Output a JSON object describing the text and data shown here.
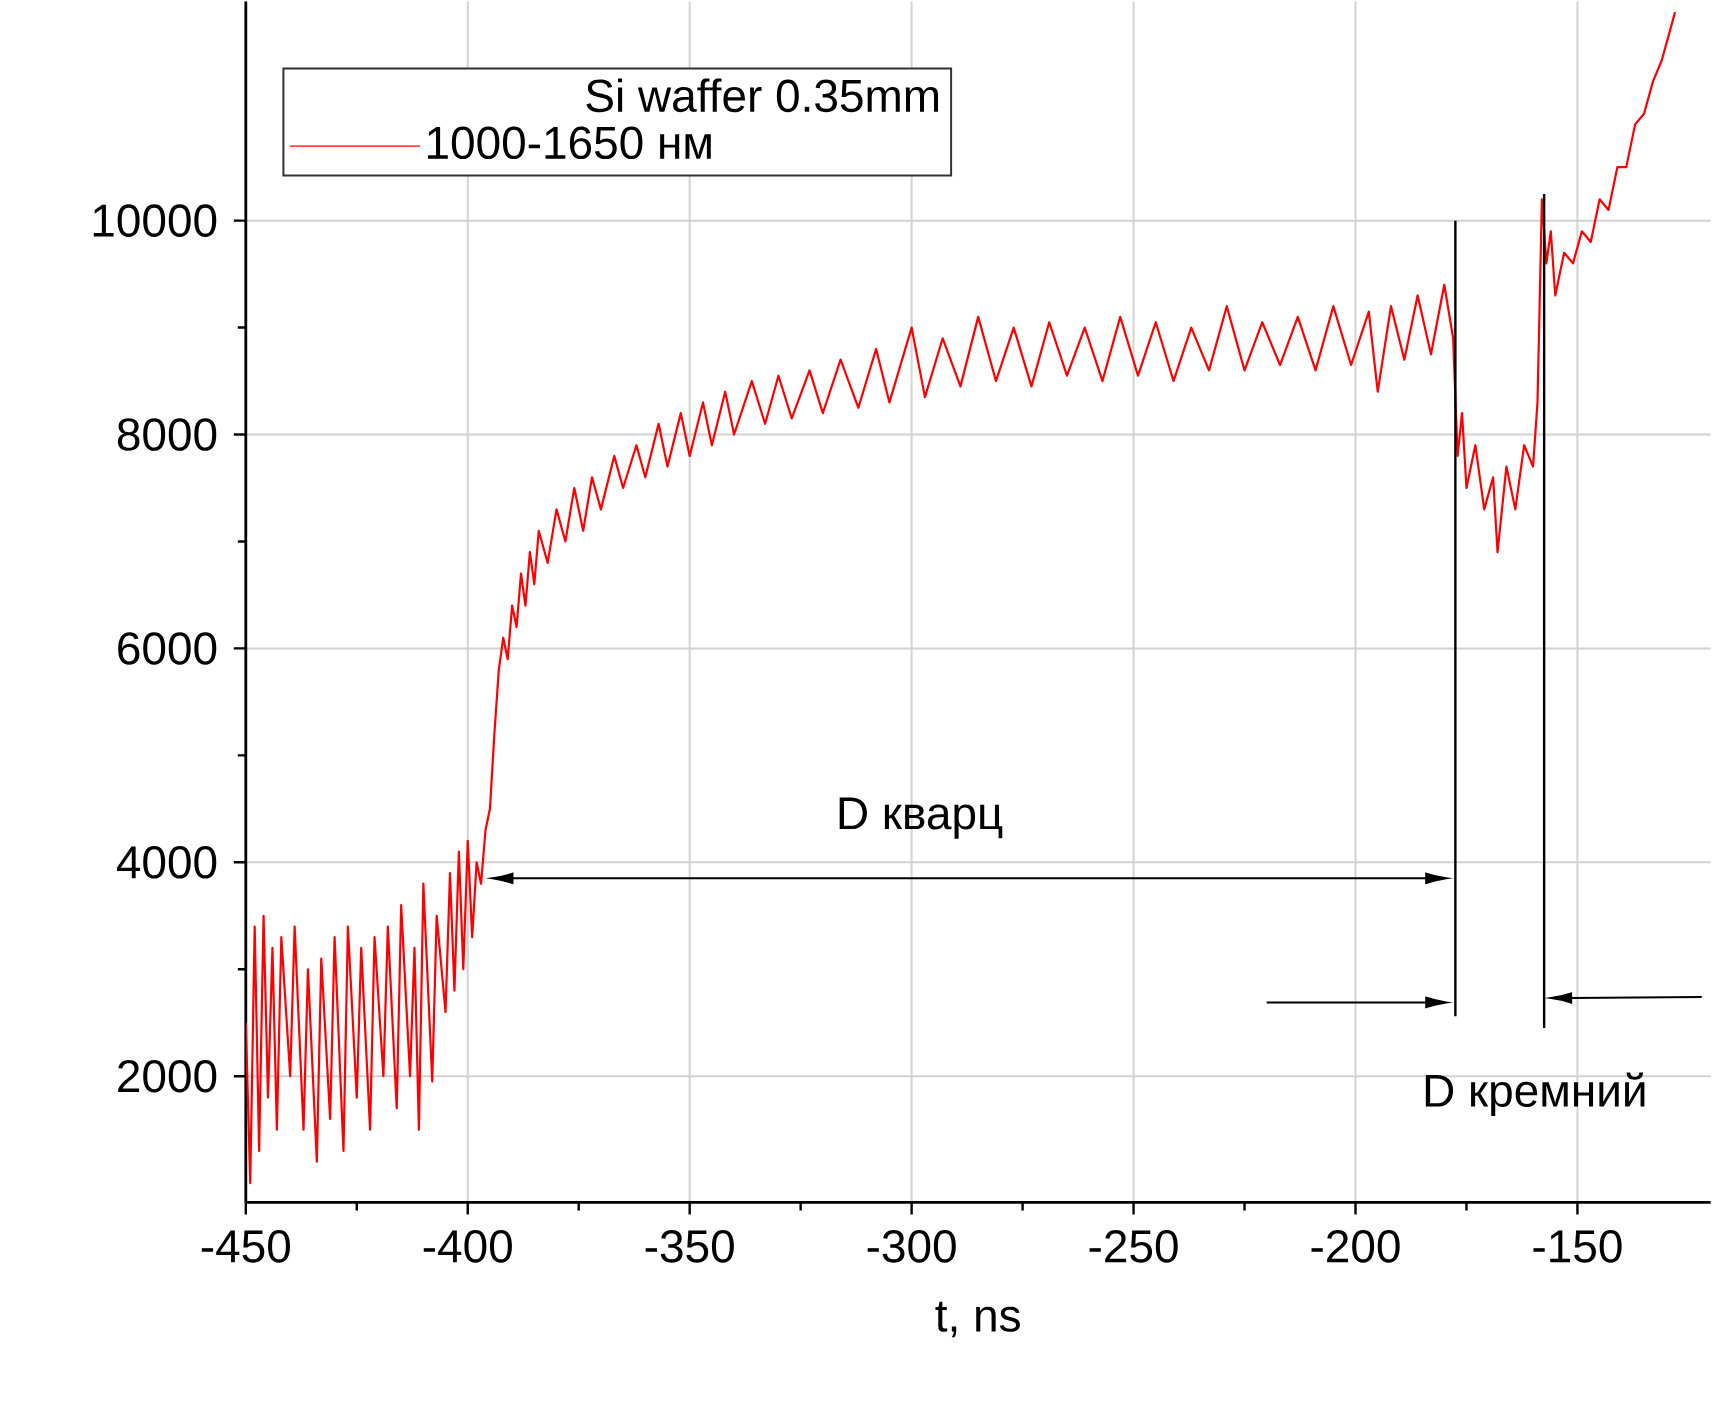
{
  "chart_data": {
    "type": "line",
    "xlabel": "t, ns",
    "legend_title": "Si waffer 0.35mm",
    "xlim": [
      -450,
      -120
    ],
    "ylim": [
      820,
      12050
    ],
    "xticks": [
      -450,
      -400,
      -350,
      -300,
      -250,
      -200,
      -150
    ],
    "yticks": [
      2000,
      4000,
      6000,
      8000,
      10000
    ],
    "grid": true,
    "legend": "top left",
    "annotations": [
      "D кварц",
      "D кремний"
    ],
    "series": [
      {
        "name": "1000-1650 нм",
        "color": "#ff0000",
        "x": [
          -450,
          -449,
          -448,
          -447,
          -446,
          -445,
          -444,
          -443,
          -442,
          -440,
          -439,
          -437,
          -436,
          -434,
          -433,
          -431,
          -430,
          -428,
          -427,
          -425,
          -424,
          -422,
          -421,
          -419,
          -418,
          -416,
          -415,
          -413,
          -412,
          -411,
          -410,
          -408,
          -407,
          -405,
          -404,
          -403,
          -402,
          -401,
          -400,
          -399,
          -398,
          -397,
          -396,
          -395,
          -394,
          -393,
          -392,
          -391,
          -390,
          -389,
          -388,
          -387,
          -386,
          -385,
          -384,
          -382,
          -380,
          -378,
          -376,
          -374,
          -372,
          -370,
          -367,
          -365,
          -362,
          -360,
          -357,
          -355,
          -352,
          -350,
          -347,
          -345,
          -342,
          -340,
          -336,
          -333,
          -330,
          -327,
          -323,
          -320,
          -316,
          -312,
          -308,
          -305,
          -300,
          -297,
          -293,
          -289,
          -285,
          -281,
          -277,
          -273,
          -269,
          -265,
          -261,
          -257,
          -253,
          -249,
          -245,
          -241,
          -237,
          -233,
          -229,
          -225,
          -221,
          -217,
          -213,
          -209,
          -205,
          -201,
          -197,
          -195,
          -192,
          -189,
          -186,
          -183,
          -180,
          -178,
          -177,
          -176,
          -175,
          -173,
          -171,
          -169,
          -168,
          -166,
          -164,
          -162,
          -160,
          -159,
          -158,
          -157,
          -156,
          -155,
          -153,
          -151,
          -149,
          -147,
          -145,
          -143,
          -141,
          -139,
          -137,
          -135,
          -133,
          -131,
          -129,
          -128
        ],
        "values": [
          2500,
          1000,
          3400,
          1300,
          3500,
          1800,
          3200,
          1500,
          3300,
          2000,
          3400,
          1500,
          3000,
          1200,
          3100,
          1600,
          3300,
          1300,
          3400,
          1800,
          3200,
          1500,
          3300,
          2000,
          3400,
          1700,
          3600,
          2000,
          3200,
          1500,
          3800,
          1950,
          3500,
          2600,
          3900,
          2800,
          4100,
          3000,
          4200,
          3300,
          4000,
          3800,
          4300,
          4500,
          5200,
          5800,
          6100,
          5900,
          6400,
          6200,
          6700,
          6400,
          6900,
          6600,
          7100,
          6800,
          7300,
          7000,
          7500,
          7100,
          7600,
          7300,
          7800,
          7500,
          7900,
          7600,
          8100,
          7700,
          8200,
          7800,
          8300,
          7900,
          8400,
          8000,
          8500,
          8100,
          8550,
          8150,
          8600,
          8200,
          8700,
          8250,
          8800,
          8300,
          9000,
          8350,
          8900,
          8450,
          9100,
          8500,
          9000,
          8450,
          9050,
          8550,
          9000,
          8500,
          9100,
          8550,
          9050,
          8500,
          9000,
          8600,
          9200,
          8600,
          9050,
          8650,
          9100,
          8600,
          9200,
          8650,
          9150,
          8400,
          9200,
          8700,
          9300,
          8750,
          9400,
          8900,
          7800,
          8200,
          7500,
          7900,
          7300,
          7600,
          6900,
          7700,
          7300,
          7900,
          7700,
          8300,
          10200,
          9600,
          9900,
          9300,
          9700,
          9600,
          9900,
          9800,
          10200,
          10100,
          10500,
          10500,
          10900,
          11000,
          11300,
          11500,
          11800,
          11950
        ]
      }
    ]
  }
}
